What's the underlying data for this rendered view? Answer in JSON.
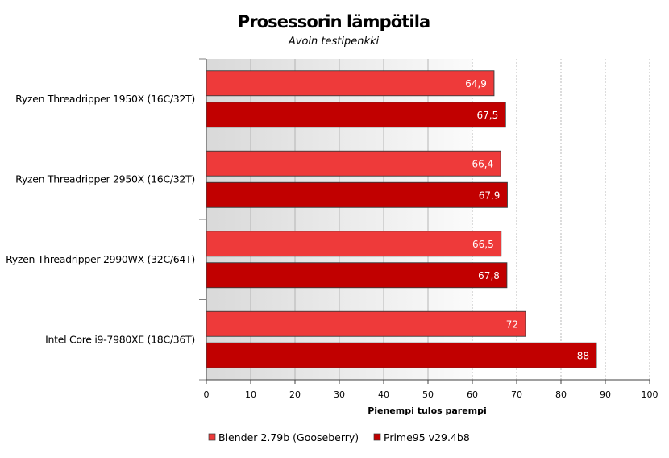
{
  "chart_data": {
    "type": "bar",
    "orientation": "horizontal",
    "title": "Prosessorin lämpötila",
    "subtitle": "Avoin testipenkki",
    "xlabel": "Pienempi tulos parempi",
    "ylabel": "",
    "xlim": [
      0,
      100
    ],
    "x_ticks": [
      0,
      10,
      20,
      30,
      40,
      50,
      60,
      70,
      80,
      90,
      100
    ],
    "grid": true,
    "legend_position": "bottom-left",
    "categories": [
      "Ryzen Threadripper 1950X (16C/32T)",
      "Ryzen Threadripper 2950X (16C/32T)",
      "Ryzen Threadripper 2990WX (32C/64T)",
      "Intel Core i9-7980XE (18C/36T)"
    ],
    "series": [
      {
        "name": "Blender 2.79b (Gooseberry)",
        "color": "#ee3a3a",
        "values": [
          64.9,
          66.4,
          66.5,
          72
        ],
        "labels": [
          "64,9",
          "66,4",
          "66,5",
          "72"
        ]
      },
      {
        "name": "Prime95 v29.4b8",
        "color": "#c10000",
        "values": [
          67.5,
          67.9,
          67.8,
          88
        ],
        "labels": [
          "67,5",
          "67,9",
          "67,8",
          "88"
        ]
      }
    ]
  }
}
